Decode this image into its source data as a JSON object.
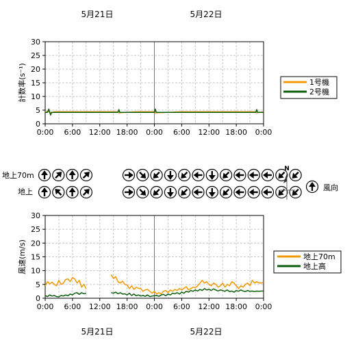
{
  "dates": {
    "day1": "5月21日",
    "day2": "5月22日"
  },
  "time_ticks": [
    "0:00",
    "6:00",
    "12:00",
    "18:00",
    "0:00",
    "6:00",
    "12:00",
    "18:00",
    "0:00"
  ],
  "wind_rows": {
    "upper_label": "地上70m",
    "lower_label": "地上"
  },
  "compass": {
    "north_label": "N",
    "legend_label": "風向"
  },
  "colors": {
    "orange": "#f39800",
    "green": "#0a5c0a",
    "grid": "#c8c8c8"
  },
  "chart_data": [
    {
      "type": "line",
      "ylabel": "計数率(s⁻¹)",
      "ylim": [
        0,
        30
      ],
      "y_ticks": [
        0,
        5,
        10,
        15,
        20,
        25,
        30
      ],
      "x_range_hours": [
        0,
        48
      ],
      "x_tick_labels": [
        "0:00",
        "6:00",
        "12:00",
        "18:00",
        "0:00",
        "6:00",
        "12:00",
        "18:00",
        "0:00"
      ],
      "grid": true,
      "legend_position": "right",
      "series": [
        {
          "name": "1号機",
          "color": "#f39800",
          "x": [
            0,
            1,
            1.3,
            2,
            6,
            12,
            16,
            16.2,
            20,
            24,
            24.2,
            30,
            36,
            42,
            46.2,
            46.4,
            48
          ],
          "y": [
            4.4,
            4.4,
            3.9,
            4.4,
            4.4,
            4.4,
            4.4,
            4.0,
            4.4,
            4.4,
            4.0,
            4.4,
            4.4,
            4.4,
            4.4,
            4.0,
            4.4
          ]
        },
        {
          "name": "2号機",
          "color": "#0a5c0a",
          "x": [
            0,
            0.5,
            0.8,
            1.0,
            1.2,
            1.4,
            2,
            6,
            12,
            16,
            16.2,
            16.4,
            20,
            24,
            24.2,
            24.4,
            30,
            36,
            42,
            46.3,
            46.5,
            46.7,
            48
          ],
          "y": [
            4.2,
            4.2,
            5.4,
            4.2,
            3.2,
            4.2,
            4.2,
            4.2,
            4.2,
            4.2,
            5.2,
            4.2,
            4.2,
            4.2,
            5.4,
            4.2,
            4.2,
            4.2,
            4.2,
            4.2,
            5.2,
            4.2,
            4.2
          ]
        }
      ]
    },
    {
      "type": "line",
      "ylabel": "風速(m/s)",
      "ylim": [
        0,
        30
      ],
      "y_ticks": [
        0,
        5,
        10,
        15,
        20,
        25,
        30
      ],
      "x_range_hours": [
        0,
        48
      ],
      "x_tick_labels": [
        "0:00",
        "6:00",
        "12:00",
        "18:00",
        "0:00",
        "6:00",
        "12:00",
        "18:00",
        "0:00"
      ],
      "grid": true,
      "legend_position": "right",
      "series": [
        {
          "name": "地上70m",
          "color": "#f39800",
          "x": [
            0,
            0.5,
            1,
            1.5,
            2,
            2.5,
            3,
            3.5,
            4,
            4.5,
            5,
            5.5,
            6,
            6.5,
            7,
            7.5,
            8,
            8.5,
            9
          ],
          "y": [
            4.5,
            6,
            5.2,
            5.8,
            5,
            4.5,
            6.5,
            5,
            5.5,
            6.8,
            7,
            6,
            7.5,
            7,
            5.5,
            6.5,
            4,
            5,
            3.5
          ]
        },
        {
          "name": "地上70m",
          "color": "#f39800",
          "x": [
            14.5,
            15,
            15.5,
            16,
            16.5,
            17,
            17.5,
            18,
            18.5,
            19,
            19.5,
            20,
            20.5,
            21,
            21.5,
            22,
            22.5,
            23,
            23.5,
            24,
            24.5,
            25,
            25.5,
            26,
            26.5,
            27,
            27.5,
            28,
            28.5,
            29,
            29.5,
            30,
            30.5,
            31,
            31.5,
            32,
            32.5,
            33,
            33.5,
            34,
            34.5,
            35,
            35.5,
            36,
            36.5,
            37,
            37.5,
            38,
            38.5,
            39,
            39.5,
            40,
            40.5,
            41,
            41.5,
            42,
            42.5,
            43,
            43.5,
            44,
            44.5,
            45,
            45.5,
            46,
            46.5,
            47,
            47.5,
            48
          ],
          "y": [
            8.5,
            7.2,
            7.8,
            6,
            5.5,
            6.2,
            5,
            4.8,
            3.5,
            4.5,
            3.2,
            4,
            3.6,
            3.5,
            2.5,
            3,
            3.2,
            2.5,
            1.8,
            2.5,
            1.5,
            2,
            1.6,
            2.5,
            2.8,
            2,
            3,
            2.5,
            3.2,
            2.8,
            3.5,
            3,
            3.6,
            4.2,
            3,
            3.5,
            4,
            3.8,
            4.5,
            5.5,
            6.5,
            5.5,
            6,
            5,
            4.5,
            5.5,
            5,
            4,
            4.5,
            5.5,
            4,
            5,
            4.5,
            6,
            5.5,
            4.5,
            3.5,
            4.5,
            4,
            5,
            5.5,
            4.5,
            6.5,
            5.5,
            6,
            5.5,
            5.5,
            5.8
          ]
        },
        {
          "name": "地上高",
          "color": "#0a5c0a",
          "x": [
            0,
            0.5,
            1,
            1.5,
            2,
            2.5,
            3,
            3.5,
            4,
            4.5,
            5,
            5.5,
            6,
            6.5,
            7,
            7.5,
            8,
            8.5,
            9
          ],
          "y": [
            1,
            0.6,
            1.2,
            0.8,
            1,
            0.6,
            0.5,
            1,
            0.8,
            1.2,
            0.9,
            1.5,
            1.2,
            1.8,
            2,
            1.4,
            2,
            1.6,
            1.8
          ]
        },
        {
          "name": "地上高",
          "color": "#0a5c0a",
          "x": [
            14.5,
            15,
            15.5,
            16,
            16.5,
            17,
            17.5,
            18,
            18.5,
            19,
            19.5,
            20,
            20.5,
            21,
            21.5,
            22,
            22.5,
            23,
            23.5,
            24,
            24.5,
            25,
            25.5,
            26,
            26.5,
            27,
            27.5,
            28,
            28.5,
            29,
            29.5,
            30,
            30.5,
            31,
            31.5,
            32,
            32.5,
            33,
            33.5,
            34,
            34.5,
            35,
            35.5,
            36,
            36.5,
            37,
            37.5,
            38,
            38.5,
            39,
            39.5,
            40,
            40.5,
            41,
            41.5,
            42,
            42.5,
            43,
            43.5,
            44,
            44.5,
            45,
            45.5,
            46,
            46.5,
            47,
            47.5,
            48
          ],
          "y": [
            2,
            1.8,
            2.2,
            1.6,
            2,
            1.5,
            1.6,
            1.2,
            1.8,
            1,
            1.5,
            0.9,
            1.2,
            0.8,
            1,
            0.7,
            1.2,
            0.6,
            0.8,
            0.9,
            1,
            0.7,
            1.2,
            1.4,
            0.9,
            1.5,
            1.2,
            1.8,
            1.6,
            2,
            1.5,
            2.2,
            1.8,
            2.5,
            2.2,
            2.8,
            2.5,
            3,
            2.6,
            3.2,
            2.8,
            3.5,
            3,
            3.2,
            2.8,
            3.4,
            3,
            2.6,
            3,
            2.8,
            2.5,
            3,
            2.4,
            2.6,
            2.2,
            2.8,
            2.5,
            3,
            2.6,
            2.4,
            2.8,
            2.5,
            2.6,
            2.4,
            2.6,
            2.5,
            2.6,
            2.6
          ]
        }
      ]
    }
  ],
  "wind_direction": {
    "upper": [
      "N",
      "NE",
      "N",
      "NE",
      "E",
      "SE",
      "SW",
      "S",
      "SW",
      "W",
      "S",
      "SW",
      "W",
      "W",
      "W",
      "SW",
      "SW"
    ],
    "lower": [
      "N",
      "NW",
      "N",
      "NE",
      "E",
      "SE",
      "SW",
      "S",
      "SW",
      "W",
      "S",
      "SW",
      "W",
      "W",
      "W",
      "SW",
      "SW"
    ]
  }
}
